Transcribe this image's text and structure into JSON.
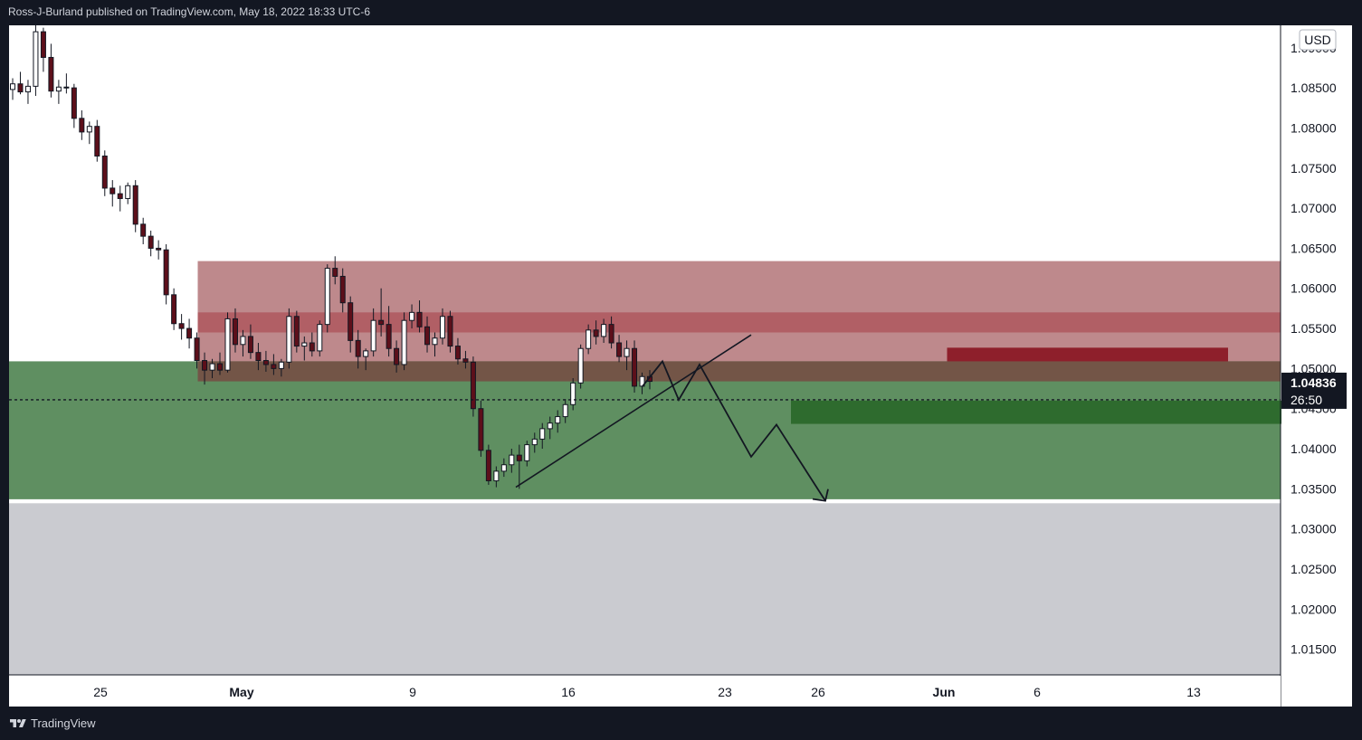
{
  "header": {
    "text": "Ross-J-Burland published on TradingView.com, May 18, 2022 18:33 UTC-6"
  },
  "footer": {
    "brand": "TradingView",
    "logo_icon": "tradingview-logo-icon"
  },
  "chart_data": {
    "type": "candlestick",
    "currency": "USD",
    "y_axis": {
      "ticks": [
        "1.09000",
        "1.08500",
        "1.08000",
        "1.07500",
        "1.07000",
        "1.06500",
        "1.06000",
        "1.05500",
        "1.05000",
        "1.04500",
        "1.04000",
        "1.03500",
        "1.03000",
        "1.02500",
        "1.02000",
        "1.01500"
      ],
      "range": [
        1.0118,
        1.0928
      ]
    },
    "x_axis": {
      "ticks": [
        "25",
        "May",
        "9",
        "16",
        "23",
        "26",
        "Jun",
        "6",
        "13"
      ],
      "bold_ticks": [
        "May",
        "Jun"
      ]
    },
    "last_price": {
      "value": "1.04836",
      "countdown": "26:50"
    },
    "zones": [
      {
        "kind": "supply",
        "from": 1.0484,
        "to": 1.0634,
        "start": "Apr 25",
        "color": "#b87f82"
      },
      {
        "kind": "supply-band",
        "from": 1.0545,
        "to": 1.057,
        "start": "Apr 25",
        "color": "#b05b62"
      },
      {
        "kind": "demand",
        "from": 1.0337,
        "to": 1.0509,
        "start": "Apr 20",
        "color": "#5f8f61"
      },
      {
        "kind": "below",
        "from": 1.0118,
        "to": 1.0332,
        "start": "Apr 20",
        "color": "#cacbd0"
      },
      {
        "kind": "small-supply",
        "from": 1.0503,
        "to": 1.0526,
        "start": "May 19",
        "end": "May 28",
        "color": "#8e1f2b"
      },
      {
        "kind": "small-demand",
        "from": 1.0431,
        "to": 1.046,
        "start": "May 14",
        "end": "Jun 1",
        "color": "#2e6b2e"
      }
    ],
    "candles_ohlc": [
      [
        1.0848,
        1.0862,
        1.0835,
        1.0855
      ],
      [
        1.0855,
        1.087,
        1.0842,
        1.0845
      ],
      [
        1.0845,
        1.086,
        1.083,
        1.0852
      ],
      [
        1.0852,
        1.0935,
        1.084,
        1.092
      ],
      [
        1.092,
        1.0925,
        1.087,
        1.0888
      ],
      [
        1.0888,
        1.0905,
        1.0838,
        1.0846
      ],
      [
        1.0846,
        1.086,
        1.083,
        1.0851
      ],
      [
        1.0851,
        1.0868,
        1.0843,
        1.085
      ],
      [
        1.085,
        1.0855,
        1.08,
        1.0812
      ],
      [
        1.0812,
        1.0822,
        1.0785,
        1.0795
      ],
      [
        1.0795,
        1.0808,
        1.078,
        1.0802
      ],
      [
        1.0802,
        1.081,
        1.0758,
        1.0765
      ],
      [
        1.0765,
        1.0772,
        1.0715,
        1.0725
      ],
      [
        1.0725,
        1.0735,
        1.0702,
        1.0718
      ],
      [
        1.0718,
        1.0728,
        1.0696,
        1.0712
      ],
      [
        1.0712,
        1.0732,
        1.0705,
        1.0728
      ],
      [
        1.0728,
        1.0735,
        1.067,
        1.068
      ],
      [
        1.068,
        1.0688,
        1.0655,
        1.0665
      ],
      [
        1.0665,
        1.0672,
        1.064,
        1.065
      ],
      [
        1.065,
        1.066,
        1.0636,
        1.0648
      ],
      [
        1.0648,
        1.0655,
        1.058,
        1.0592
      ],
      [
        1.0592,
        1.06,
        1.0548,
        1.0556
      ],
      [
        1.0556,
        1.0568,
        1.0536,
        1.055
      ],
      [
        1.055,
        1.0562,
        1.0525,
        1.0538
      ],
      [
        1.0538,
        1.0545,
        1.05,
        1.051
      ],
      [
        1.051,
        1.052,
        1.048,
        1.0498
      ],
      [
        1.0498,
        1.0512,
        1.0488,
        1.0506
      ],
      [
        1.0506,
        1.052,
        1.0492,
        1.0498
      ],
      [
        1.0498,
        1.057,
        1.0495,
        1.0562
      ],
      [
        1.0562,
        1.0575,
        1.052,
        1.053
      ],
      [
        1.053,
        1.0548,
        1.0515,
        1.054
      ],
      [
        1.054,
        1.0555,
        1.0512,
        1.052
      ],
      [
        1.052,
        1.0532,
        1.0498,
        1.051
      ],
      [
        1.051,
        1.0522,
        1.0496,
        1.0505
      ],
      [
        1.0505,
        1.0518,
        1.0492,
        1.05
      ],
      [
        1.05,
        1.0512,
        1.049,
        1.0508
      ],
      [
        1.0508,
        1.0575,
        1.05,
        1.0565
      ],
      [
        1.0565,
        1.0572,
        1.052,
        1.0528
      ],
      [
        1.0528,
        1.054,
        1.051,
        1.0532
      ],
      [
        1.0532,
        1.0545,
        1.0515,
        1.0522
      ],
      [
        1.0522,
        1.056,
        1.0515,
        1.0555
      ],
      [
        1.0555,
        1.063,
        1.0545,
        1.0625
      ],
      [
        1.0625,
        1.064,
        1.0605,
        1.0615
      ],
      [
        1.0615,
        1.0625,
        1.057,
        1.0582
      ],
      [
        1.0582,
        1.059,
        1.052,
        1.0535
      ],
      [
        1.0535,
        1.0548,
        1.05,
        1.0515
      ],
      [
        1.0515,
        1.0525,
        1.0498,
        1.0522
      ],
      [
        1.0522,
        1.0575,
        1.0515,
        1.056
      ],
      [
        1.056,
        1.06,
        1.054,
        1.0555
      ],
      [
        1.0555,
        1.0578,
        1.0515,
        1.0525
      ],
      [
        1.0525,
        1.0535,
        1.0495,
        1.0505
      ],
      [
        1.0505,
        1.057,
        1.0498,
        1.056
      ],
      [
        1.056,
        1.058,
        1.055,
        1.057
      ],
      [
        1.057,
        1.0585,
        1.0545,
        1.0552
      ],
      [
        1.0552,
        1.0565,
        1.052,
        1.053
      ],
      [
        1.053,
        1.0545,
        1.0515,
        1.0538
      ],
      [
        1.0538,
        1.0575,
        1.053,
        1.0565
      ],
      [
        1.0565,
        1.0572,
        1.052,
        1.0528
      ],
      [
        1.0528,
        1.0538,
        1.0505,
        1.0512
      ],
      [
        1.0512,
        1.0522,
        1.05,
        1.0508
      ],
      [
        1.0508,
        1.0515,
        1.044,
        1.045
      ],
      [
        1.045,
        1.046,
        1.039,
        1.0398
      ],
      [
        1.0398,
        1.0405,
        1.0355,
        1.036
      ],
      [
        1.036,
        1.0378,
        1.0352,
        1.0372
      ],
      [
        1.0372,
        1.0388,
        1.0365,
        1.038
      ],
      [
        1.038,
        1.04,
        1.037,
        1.0392
      ],
      [
        1.0392,
        1.0405,
        1.035,
        1.0385
      ],
      [
        1.0385,
        1.041,
        1.0378,
        1.0405
      ],
      [
        1.0405,
        1.042,
        1.0395,
        1.0412
      ],
      [
        1.0412,
        1.0432,
        1.04,
        1.0425
      ],
      [
        1.0425,
        1.044,
        1.0412,
        1.0432
      ],
      [
        1.0432,
        1.0448,
        1.042,
        1.044
      ],
      [
        1.044,
        1.0462,
        1.0432,
        1.0455
      ],
      [
        1.0455,
        1.0488,
        1.0448,
        1.0482
      ],
      [
        1.0482,
        1.053,
        1.0475,
        1.0525
      ],
      [
        1.0525,
        1.0555,
        1.0518,
        1.0548
      ],
      [
        1.0548,
        1.056,
        1.053,
        1.054
      ],
      [
        1.054,
        1.0562,
        1.0532,
        1.0555
      ],
      [
        1.0555,
        1.0565,
        1.0525,
        1.0532
      ],
      [
        1.0532,
        1.0542,
        1.0508,
        1.0515
      ],
      [
        1.0515,
        1.0535,
        1.0498,
        1.0525
      ],
      [
        1.0525,
        1.0535,
        1.047,
        1.0478
      ],
      [
        1.0478,
        1.0495,
        1.0468,
        1.049
      ],
      [
        1.049,
        1.0498,
        1.0474,
        1.0484
      ]
    ],
    "annotations": [
      {
        "type": "trendline",
        "points": [
          [
            "May 13",
            1.0352
          ],
          [
            "May 24",
            1.054
          ]
        ]
      },
      {
        "type": "projection-path",
        "points": [
          [
            "May 19",
            1.0488
          ],
          [
            "May 20",
            1.0508
          ],
          [
            "May 21",
            1.046
          ],
          [
            "May 22",
            1.0505
          ],
          [
            "May 24",
            1.039
          ],
          [
            "May 25",
            1.043
          ],
          [
            "May 27",
            1.0335
          ]
        ]
      }
    ],
    "colors": {
      "up": "#131722",
      "down": "#131722",
      "candle_up_fill": "#ffffff",
      "candle_down_fill": "#5d0f1a",
      "price_line": "#131722"
    }
  }
}
